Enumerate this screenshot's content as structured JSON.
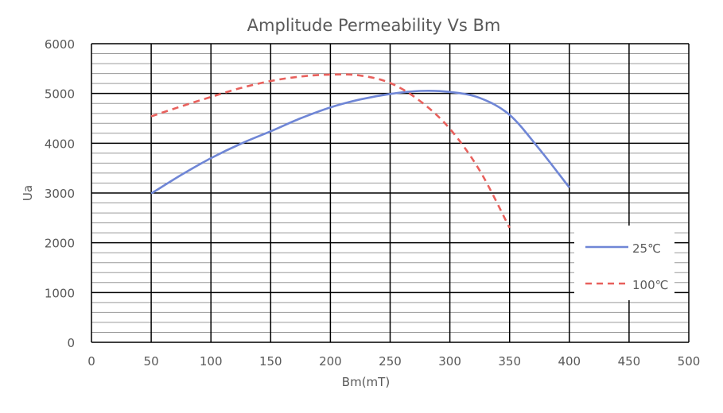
{
  "chart_data": {
    "type": "line",
    "title": "Amplitude Permeability Vs Bm",
    "xlabel": "Bm(mT)",
    "ylabel": "Ua",
    "xlim": [
      0,
      500
    ],
    "ylim": [
      0,
      6000
    ],
    "x_ticks": [
      0,
      50,
      100,
      150,
      200,
      250,
      300,
      350,
      400,
      450,
      500
    ],
    "y_ticks": [
      0,
      1000,
      2000,
      3000,
      4000,
      5000,
      6000
    ],
    "y_minor_step": 200,
    "grid": true,
    "legend_position": "right",
    "series": [
      {
        "name": "25℃",
        "color": "#6f86d6",
        "style": "solid",
        "points": [
          [
            50,
            2990
          ],
          [
            75,
            3360
          ],
          [
            100,
            3700
          ],
          [
            125,
            3990
          ],
          [
            150,
            4240
          ],
          [
            175,
            4500
          ],
          [
            200,
            4720
          ],
          [
            225,
            4880
          ],
          [
            250,
            4990
          ],
          [
            275,
            5050
          ],
          [
            300,
            5030
          ],
          [
            325,
            4910
          ],
          [
            350,
            4570
          ],
          [
            375,
            3880
          ],
          [
            400,
            3110
          ]
        ]
      },
      {
        "name": "100℃",
        "color": "#e8605c",
        "style": "dashed",
        "points": [
          [
            50,
            4540
          ],
          [
            75,
            4740
          ],
          [
            100,
            4930
          ],
          [
            125,
            5110
          ],
          [
            150,
            5250
          ],
          [
            175,
            5340
          ],
          [
            200,
            5380
          ],
          [
            225,
            5360
          ],
          [
            250,
            5210
          ],
          [
            275,
            4850
          ],
          [
            300,
            4290
          ],
          [
            325,
            3450
          ],
          [
            350,
            2300
          ]
        ]
      }
    ]
  }
}
